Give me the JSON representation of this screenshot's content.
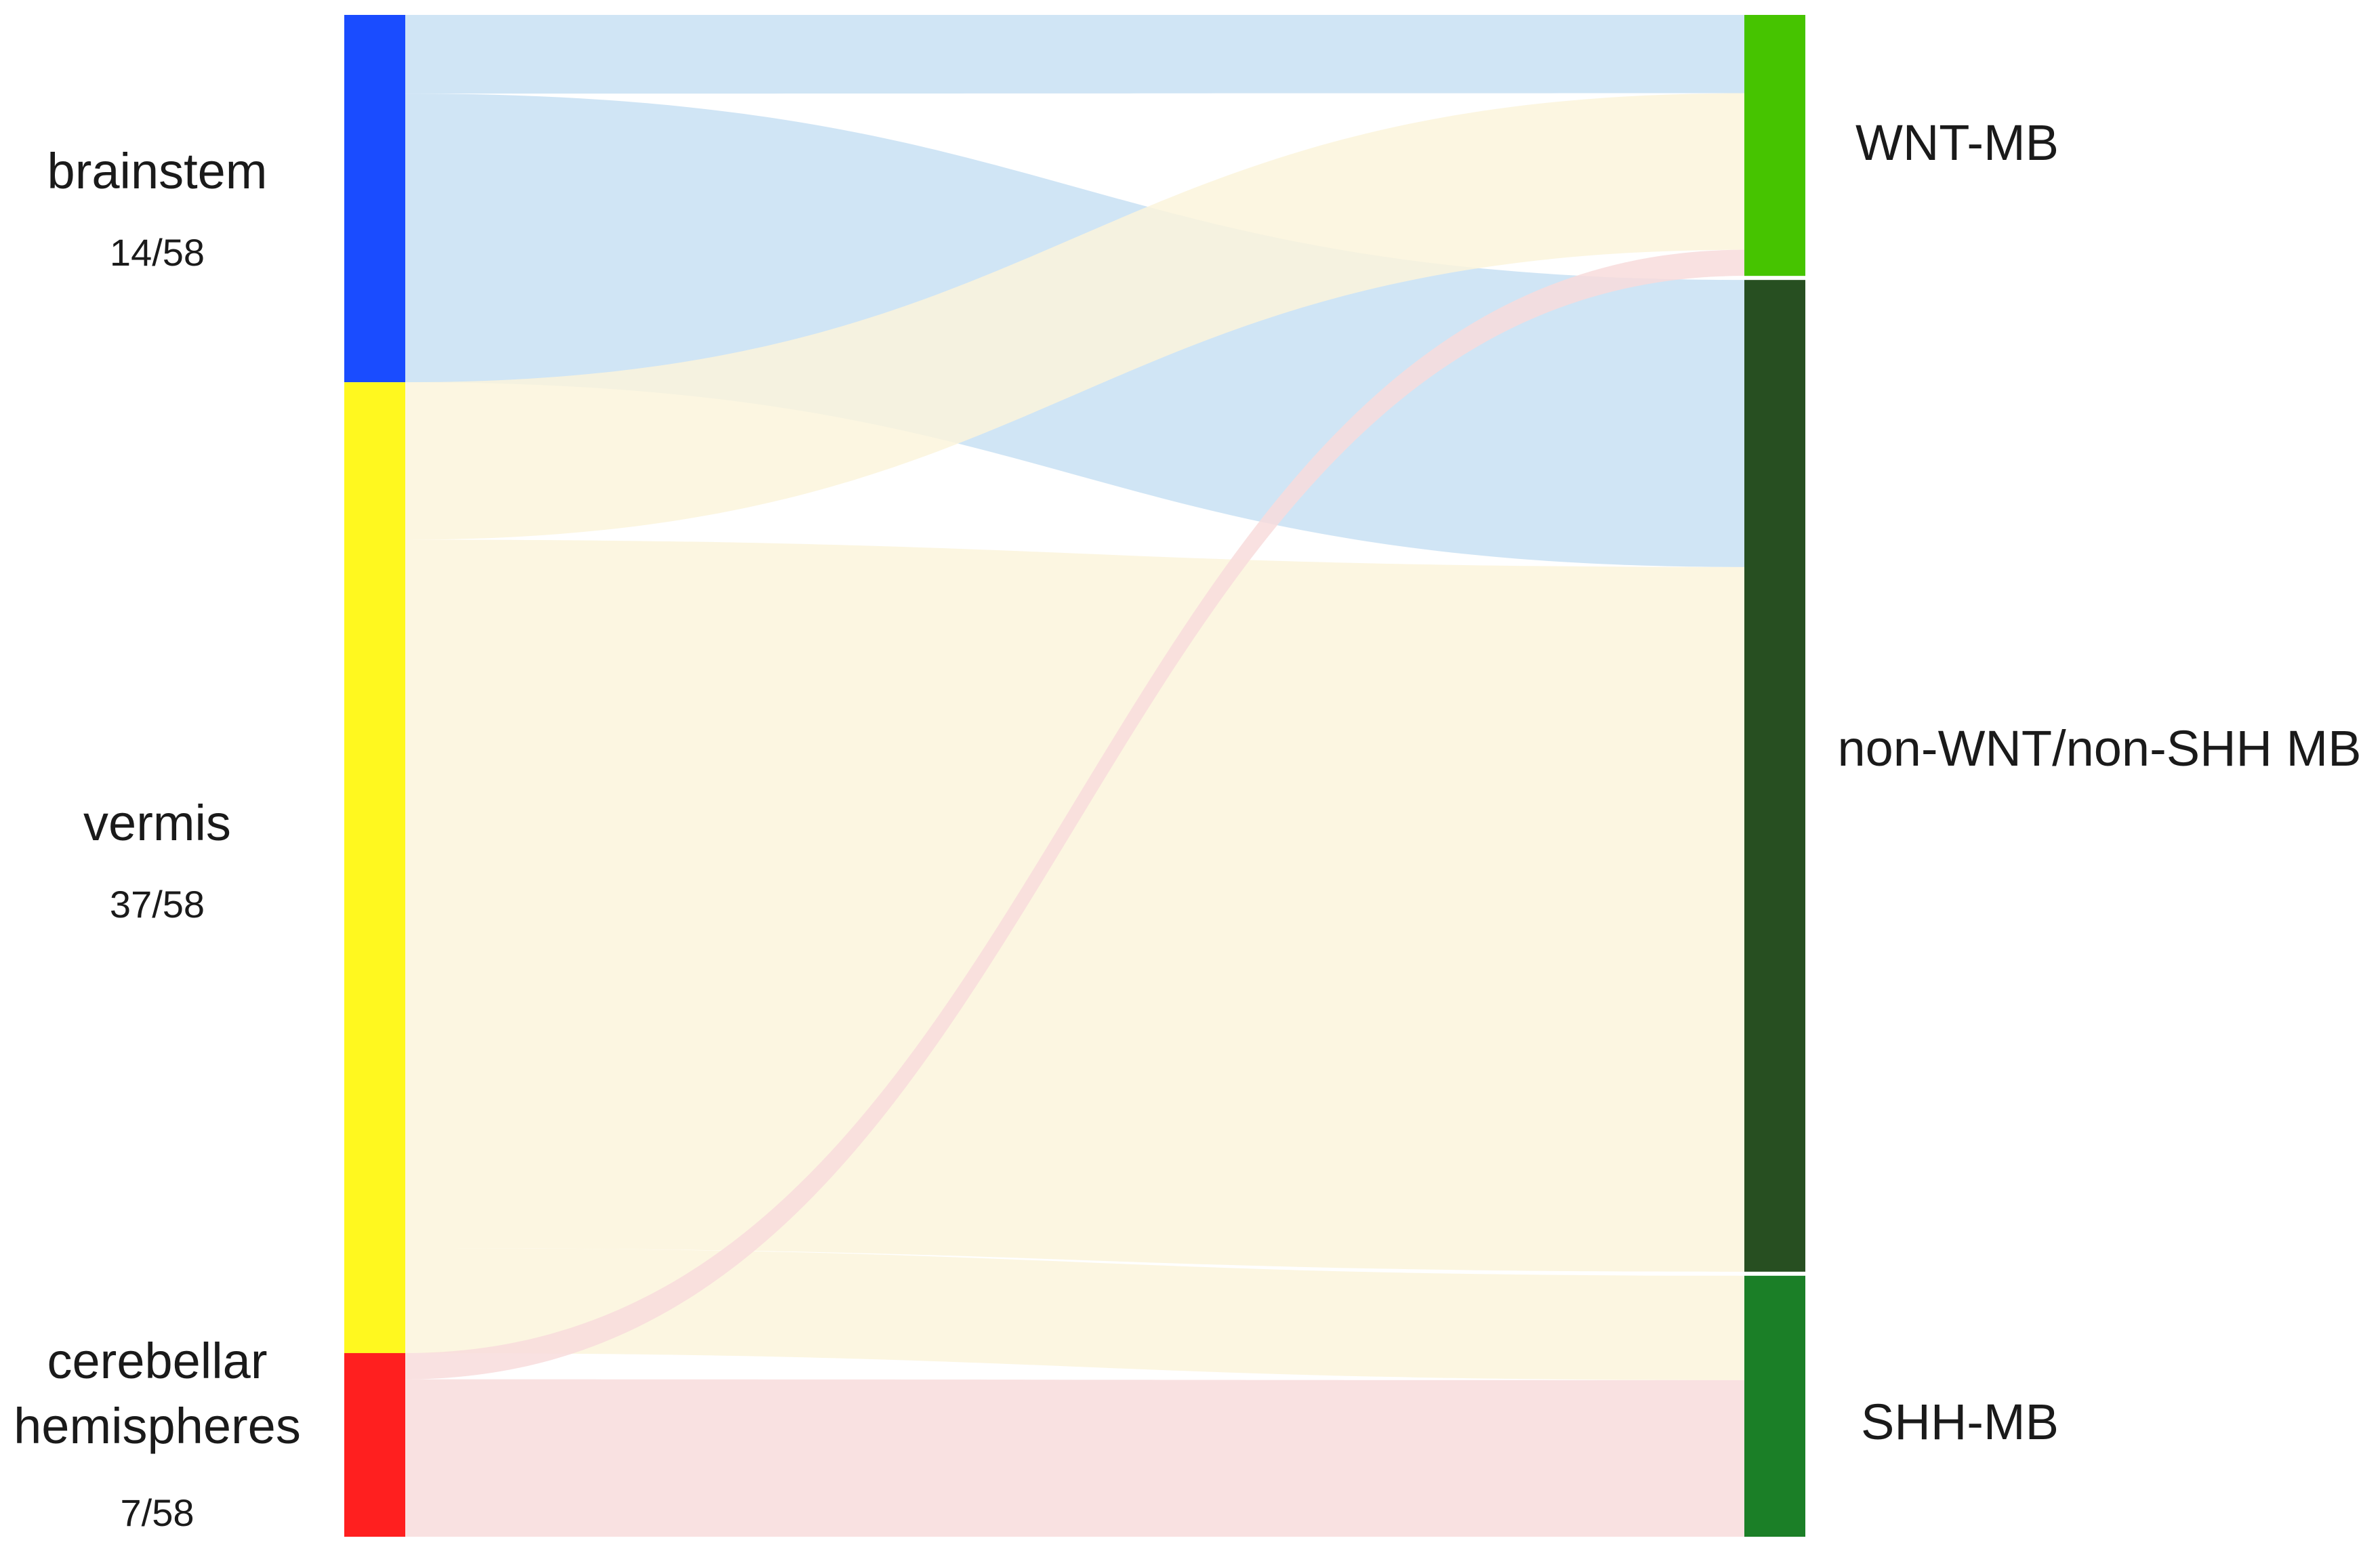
{
  "sources": [
    {
      "id": "brainstem",
      "lines": [
        "brainstem"
      ],
      "count": "14/58",
      "color": "#1a4cff"
    },
    {
      "id": "vermis",
      "lines": [
        "vermis"
      ],
      "count": "37/58",
      "color": "#fff81f"
    },
    {
      "id": "cerebellar-hemispheres",
      "lines": [
        "cerebellar",
        "hemispheres"
      ],
      "count": "7/58",
      "color": "#ff1f1f"
    }
  ],
  "targets": [
    {
      "id": "wnt",
      "label": "WNT-MB",
      "color": "#46c400"
    },
    {
      "id": "non-wnt-non-shh",
      "label": "non-WNT/non-SHH MB",
      "color": "#274f21"
    },
    {
      "id": "shh",
      "label": "SHH-MB",
      "color": "#1b7f27"
    }
  ],
  "flows": [
    {
      "source": "brainstem",
      "target": "wnt",
      "value": 3,
      "color": "#c8e1f3"
    },
    {
      "source": "brainstem",
      "target": "non-wnt-non-shh",
      "value": 11,
      "color": "#c8e1f3"
    },
    {
      "source": "vermis",
      "target": "wnt",
      "value": 6,
      "color": "#fbf4dc"
    },
    {
      "source": "vermis",
      "target": "non-wnt-non-shh",
      "value": 27,
      "color": "#fbf4dc"
    },
    {
      "source": "vermis",
      "target": "shh",
      "value": 4,
      "color": "#fbf4dc"
    },
    {
      "source": "cerebellar-hemispheres",
      "target": "wnt",
      "value": 1,
      "color": "#f8dcdc"
    },
    {
      "source": "cerebellar-hemispheres",
      "target": "shh",
      "value": 6,
      "color": "#f8dcdc"
    }
  ]
}
